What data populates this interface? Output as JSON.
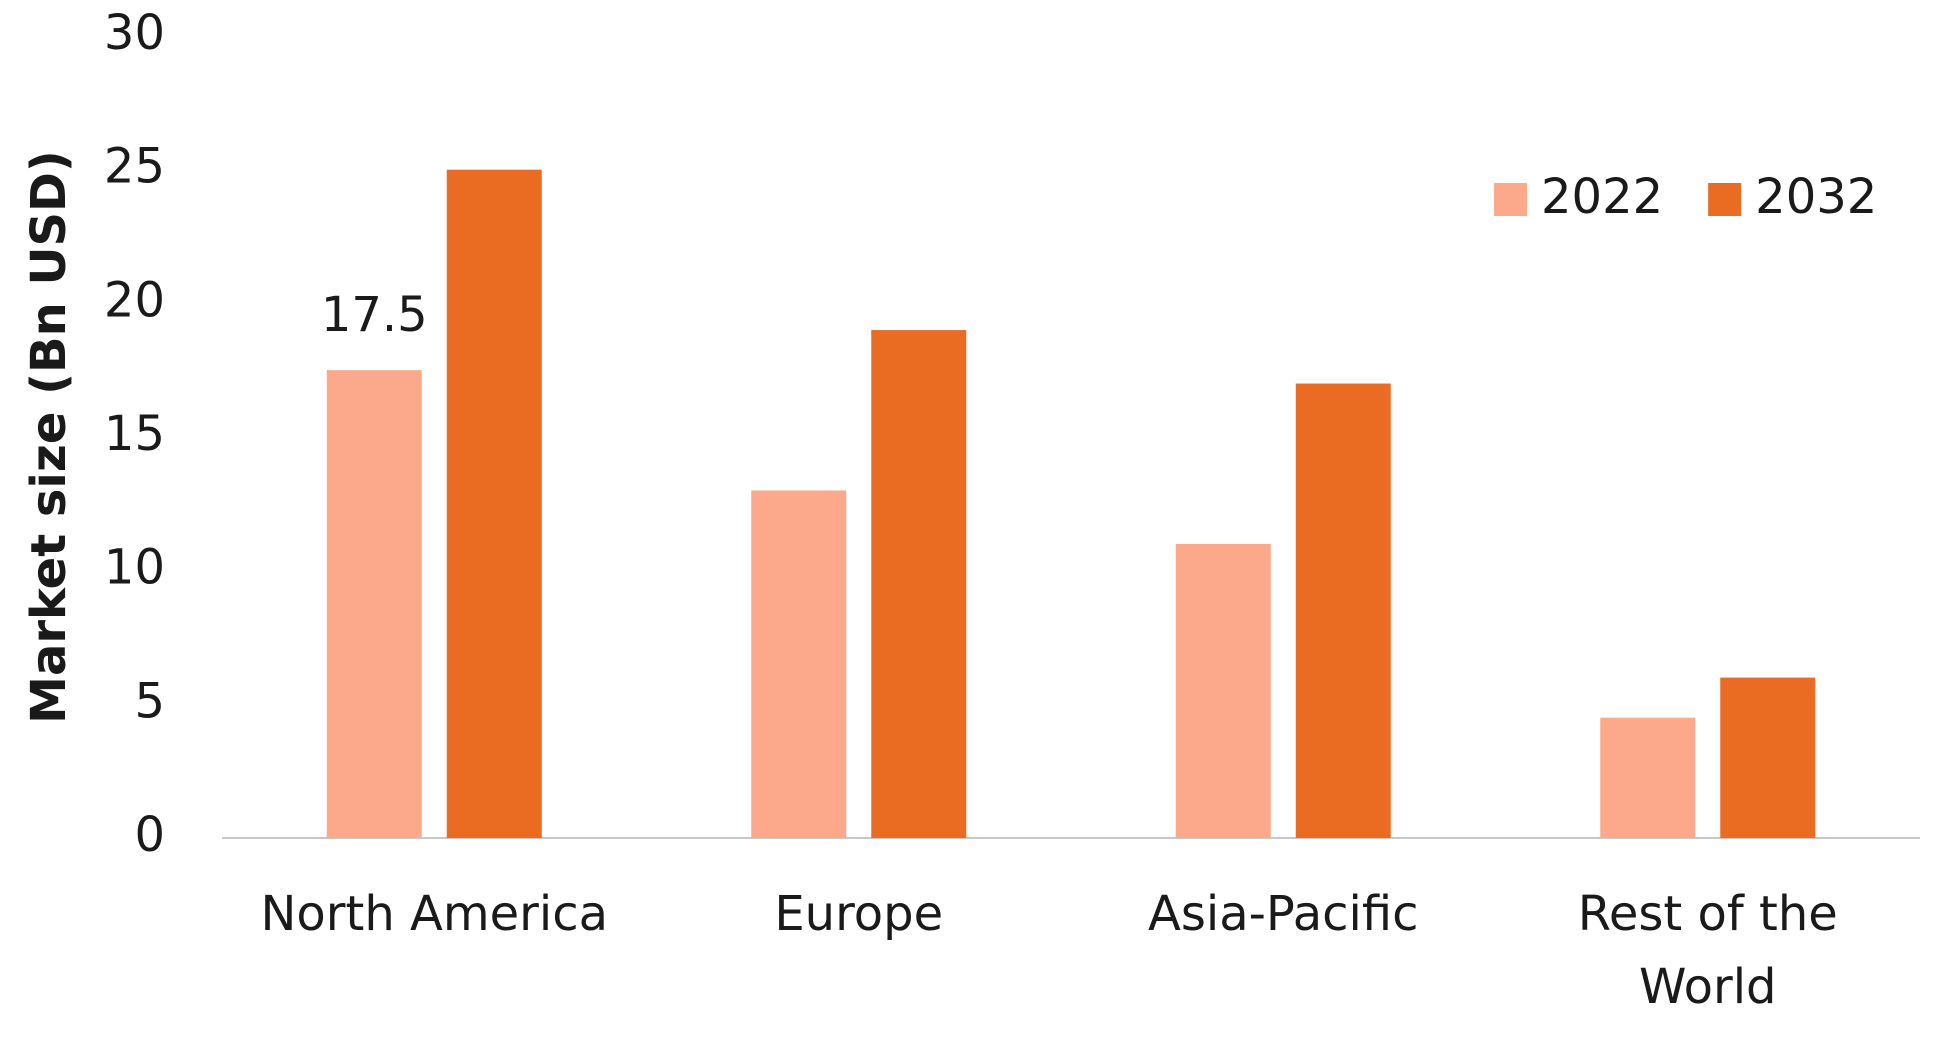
{
  "chart_data": {
    "type": "bar",
    "y_label": "Market size (Bn USD)",
    "categories": [
      "North America",
      "Europe",
      "Asia-Pacific",
      "Rest of the World"
    ],
    "series": [
      {
        "name": "2022",
        "color": "#fca98b",
        "values": [
          17.5,
          13,
          11,
          4.5
        ],
        "data_label_indices": [
          0
        ]
      },
      {
        "name": "2032",
        "color": "#ea6b22",
        "values": [
          25,
          19,
          17,
          6
        ]
      }
    ],
    "ylim": [
      0,
      30
    ],
    "yticks": [
      0,
      5,
      10,
      15,
      20,
      25,
      30
    ],
    "grid": false,
    "legend": "top-right"
  }
}
